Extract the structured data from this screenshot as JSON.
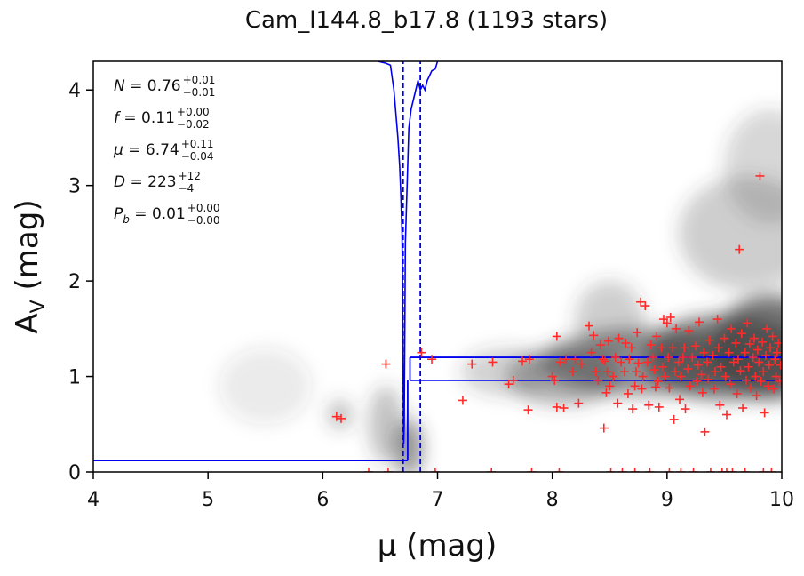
{
  "chart_data": {
    "type": "scatter",
    "title": "Cam_l144.8_b17.8 (1193 stars)",
    "xlabel": "μ (mag)",
    "ylabel": "A_V (mag)",
    "ylabel_main": "A",
    "ylabel_sub": "V",
    "ylabel_unit": " (mag)",
    "xlim": [
      4,
      10
    ],
    "ylim": [
      0,
      4.3
    ],
    "xticks": [
      4,
      5,
      6,
      7,
      8,
      9,
      10
    ],
    "yticks": [
      0,
      1,
      2,
      3,
      4
    ],
    "grid": false,
    "annotations": [
      {
        "lhs": "N",
        "value": "0.76",
        "plus": "+0.01",
        "minus": "−0.01"
      },
      {
        "lhs": "f",
        "value": "0.11",
        "plus": "+0.00",
        "minus": "−0.02"
      },
      {
        "lhs": "μ",
        "value": "6.74",
        "plus": "+0.11",
        "minus": "−0.04"
      },
      {
        "lhs": "D",
        "value": "223",
        "plus": "+12",
        "minus": "−4"
      },
      {
        "lhs": "P",
        "lhs_sub": "b",
        "value": "0.01",
        "plus": "+0.00",
        "minus": "−0.00"
      }
    ],
    "colors": {
      "stars": "#ff2a2a",
      "model": "#0000ee",
      "density": "#3c3c3c"
    },
    "model": {
      "foreground_av": 0.12,
      "step_mu": 6.74,
      "background_av_lower": 0.96,
      "background_av_upper": 1.2,
      "mu_median_line": 6.7,
      "mu_upper_line": 6.85,
      "bracket_start_mu": 6.76,
      "probability_curve": [
        [
          6.48,
          4.3
        ],
        [
          6.55,
          4.28
        ],
        [
          6.59,
          4.26
        ],
        [
          6.62,
          4.0
        ],
        [
          6.655,
          3.5
        ],
        [
          6.67,
          3.2
        ],
        [
          6.68,
          2.9
        ],
        [
          6.69,
          2.5
        ],
        [
          6.695,
          2.0
        ],
        [
          6.7,
          1.0
        ],
        [
          6.705,
          0.3
        ],
        [
          6.71,
          0.5
        ],
        [
          6.715,
          1.5
        ],
        [
          6.72,
          2.4
        ],
        [
          6.73,
          2.8
        ],
        [
          6.74,
          3.2
        ],
        [
          6.75,
          3.6
        ],
        [
          6.77,
          3.8
        ],
        [
          6.79,
          3.9
        ],
        [
          6.81,
          4.0
        ],
        [
          6.83,
          4.1
        ],
        [
          6.85,
          4.0
        ],
        [
          6.87,
          4.05
        ],
        [
          6.89,
          4.0
        ],
        [
          6.91,
          4.1
        ],
        [
          6.93,
          4.15
        ],
        [
          6.95,
          4.2
        ],
        [
          6.98,
          4.22
        ],
        [
          7.0,
          4.3
        ]
      ]
    },
    "density_blobs": [
      [
        8.8,
        1.15,
        0.9,
        0.35,
        0.55
      ],
      [
        9.5,
        1.2,
        0.7,
        0.45,
        0.65
      ],
      [
        9.9,
        1.3,
        0.5,
        0.55,
        0.7
      ],
      [
        8.1,
        1.0,
        0.5,
        0.3,
        0.4
      ],
      [
        9.7,
        2.5,
        0.6,
        0.6,
        0.25
      ],
      [
        9.9,
        3.2,
        0.4,
        0.6,
        0.2
      ],
      [
        7.6,
        1.05,
        0.4,
        0.25,
        0.22
      ],
      [
        6.75,
        0.25,
        0.12,
        0.3,
        0.55
      ],
      [
        6.55,
        0.5,
        0.15,
        0.4,
        0.3
      ],
      [
        6.15,
        0.6,
        0.1,
        0.15,
        0.35
      ],
      [
        5.5,
        0.9,
        0.4,
        0.4,
        0.1
      ],
      [
        8.5,
        1.6,
        0.3,
        0.4,
        0.25
      ]
    ],
    "stars": [
      [
        6.12,
        0.58
      ],
      [
        6.16,
        0.56
      ],
      [
        6.55,
        1.13
      ],
      [
        6.86,
        1.25
      ],
      [
        6.95,
        1.18
      ],
      [
        6.4,
        0.0
      ],
      [
        6.57,
        0.0
      ],
      [
        6.98,
        0.0
      ],
      [
        7.22,
        0.75
      ],
      [
        7.3,
        1.13
      ],
      [
        7.47,
        0.0
      ],
      [
        7.48,
        1.15
      ],
      [
        7.62,
        0.92
      ],
      [
        7.66,
        0.96
      ],
      [
        7.74,
        1.16
      ],
      [
        7.79,
        0.65
      ],
      [
        7.8,
        1.18
      ],
      [
        7.82,
        0.0
      ],
      [
        8.0,
        1.0
      ],
      [
        8.02,
        0.96
      ],
      [
        8.04,
        1.42
      ],
      [
        8.04,
        0.68
      ],
      [
        8.06,
        0.0
      ],
      [
        8.07,
        1.15
      ],
      [
        8.1,
        0.67
      ],
      [
        8.12,
        1.18
      ],
      [
        8.18,
        1.05
      ],
      [
        8.2,
        1.18
      ],
      [
        8.23,
        0.72
      ],
      [
        8.25,
        1.13
      ],
      [
        8.32,
        1.53
      ],
      [
        8.34,
        1.25
      ],
      [
        8.36,
        1.43
      ],
      [
        8.38,
        1.05
      ],
      [
        8.4,
        0.96
      ],
      [
        8.42,
        1.33
      ],
      [
        8.44,
        1.18
      ],
      [
        8.45,
        0.46
      ],
      [
        8.46,
        1.16
      ],
      [
        8.47,
        0.83
      ],
      [
        8.48,
        1.05
      ],
      [
        8.49,
        1.37
      ],
      [
        8.5,
        0.9
      ],
      [
        8.51,
        0.0
      ],
      [
        8.53,
        1.0
      ],
      [
        8.55,
        1.2
      ],
      [
        8.57,
        0.72
      ],
      [
        8.58,
        1.4
      ],
      [
        8.6,
        1.15
      ],
      [
        8.61,
        0.0
      ],
      [
        8.63,
        1.05
      ],
      [
        8.64,
        1.35
      ],
      [
        8.66,
        0.82
      ],
      [
        8.67,
        1.18
      ],
      [
        8.69,
        1.3
      ],
      [
        8.7,
        0.66
      ],
      [
        8.72,
        0.9
      ],
      [
        8.73,
        1.05
      ],
      [
        8.74,
        1.46
      ],
      [
        8.75,
        1.14
      ],
      [
        8.77,
        1.78
      ],
      [
        8.78,
        0.87
      ],
      [
        8.79,
        1.0
      ],
      [
        8.81,
        1.74
      ],
      [
        8.83,
        1.15
      ],
      [
        8.84,
        0.7
      ],
      [
        8.86,
        1.33
      ],
      [
        8.88,
        1.2
      ],
      [
        8.89,
        1.07
      ],
      [
        8.9,
        0.89
      ],
      [
        8.91,
        1.42
      ],
      [
        8.92,
        0.95
      ],
      [
        8.93,
        0.68
      ],
      [
        8.95,
        1.3
      ],
      [
        8.96,
        1.1
      ],
      [
        8.97,
        1.6
      ],
      [
        8.98,
        1.0
      ],
      [
        9.0,
        1.56
      ],
      [
        9.01,
        1.2
      ],
      [
        9.02,
        0.88
      ],
      [
        9.03,
        1.62
      ],
      [
        9.05,
        1.3
      ],
      [
        9.06,
        0.55
      ],
      [
        9.07,
        1.05
      ],
      [
        9.08,
        1.5
      ],
      [
        9.1,
        1.15
      ],
      [
        9.11,
        0.76
      ],
      [
        9.12,
        1.0
      ],
      [
        9.14,
        1.2
      ],
      [
        9.15,
        1.3
      ],
      [
        9.16,
        0.66
      ],
      [
        9.18,
        1.08
      ],
      [
        9.19,
        1.48
      ],
      [
        9.2,
        0.9
      ],
      [
        9.22,
        1.2
      ],
      [
        9.23,
        0.0
      ],
      [
        9.25,
        1.32
      ],
      [
        9.26,
        0.95
      ],
      [
        9.27,
        1.12
      ],
      [
        9.28,
        1.57
      ],
      [
        9.3,
        1.02
      ],
      [
        9.31,
        0.83
      ],
      [
        9.32,
        1.25
      ],
      [
        9.33,
        0.42
      ],
      [
        9.35,
        1.15
      ],
      [
        9.36,
        0.97
      ],
      [
        9.37,
        1.38
      ],
      [
        9.38,
        0.0
      ],
      [
        9.4,
        1.22
      ],
      [
        9.41,
        0.87
      ],
      [
        9.42,
        1.05
      ],
      [
        9.44,
        1.6
      ],
      [
        9.45,
        1.3
      ],
      [
        9.46,
        0.7
      ],
      [
        9.47,
        1.1
      ],
      [
        9.48,
        0.0
      ],
      [
        9.5,
        1.4
      ],
      [
        9.51,
        1.0
      ],
      [
        9.52,
        0.6
      ],
      [
        9.54,
        1.25
      ],
      [
        9.55,
        0.92
      ],
      [
        9.56,
        1.5
      ],
      [
        9.57,
        0.0
      ],
      [
        9.58,
        1.15
      ],
      [
        9.6,
        1.35
      ],
      [
        9.61,
        0.82
      ],
      [
        9.62,
        1.18
      ],
      [
        9.63,
        2.33
      ],
      [
        9.64,
        1.06
      ],
      [
        9.65,
        1.45
      ],
      [
        9.66,
        0.67
      ],
      [
        9.68,
        1.25
      ],
      [
        9.69,
        0.96
      ],
      [
        9.7,
        1.56
      ],
      [
        9.71,
        1.1
      ],
      [
        9.72,
        1.34
      ],
      [
        9.73,
        0.88
      ],
      [
        9.75,
        1.2
      ],
      [
        9.76,
        1.4
      ],
      [
        9.77,
        1.0
      ],
      [
        9.78,
        0.8
      ],
      [
        9.79,
        1.28
      ],
      [
        9.8,
        1.15
      ],
      [
        9.81,
        3.1
      ],
      [
        9.82,
        0.95
      ],
      [
        9.83,
        1.36
      ],
      [
        9.84,
        1.05
      ],
      [
        9.85,
        0.62
      ],
      [
        9.86,
        1.22
      ],
      [
        9.87,
        1.5
      ],
      [
        9.88,
        0.9
      ],
      [
        9.89,
        1.12
      ],
      [
        9.9,
        1.3
      ],
      [
        9.91,
        0.0
      ],
      [
        9.92,
        1.42
      ],
      [
        9.93,
        0.87
      ],
      [
        9.94,
        1.18
      ],
      [
        9.95,
        1.0
      ],
      [
        9.96,
        1.25
      ],
      [
        9.97,
        1.35
      ],
      [
        9.98,
        0.95
      ],
      [
        9.99,
        1.12
      ],
      [
        8.85,
        0.0
      ],
      [
        9.02,
        0.0
      ],
      [
        9.68,
        0.0
      ],
      [
        9.12,
        0.0
      ],
      [
        8.72,
        0.0
      ],
      [
        9.52,
        0.0
      ],
      [
        9.84,
        0.0
      ]
    ]
  }
}
